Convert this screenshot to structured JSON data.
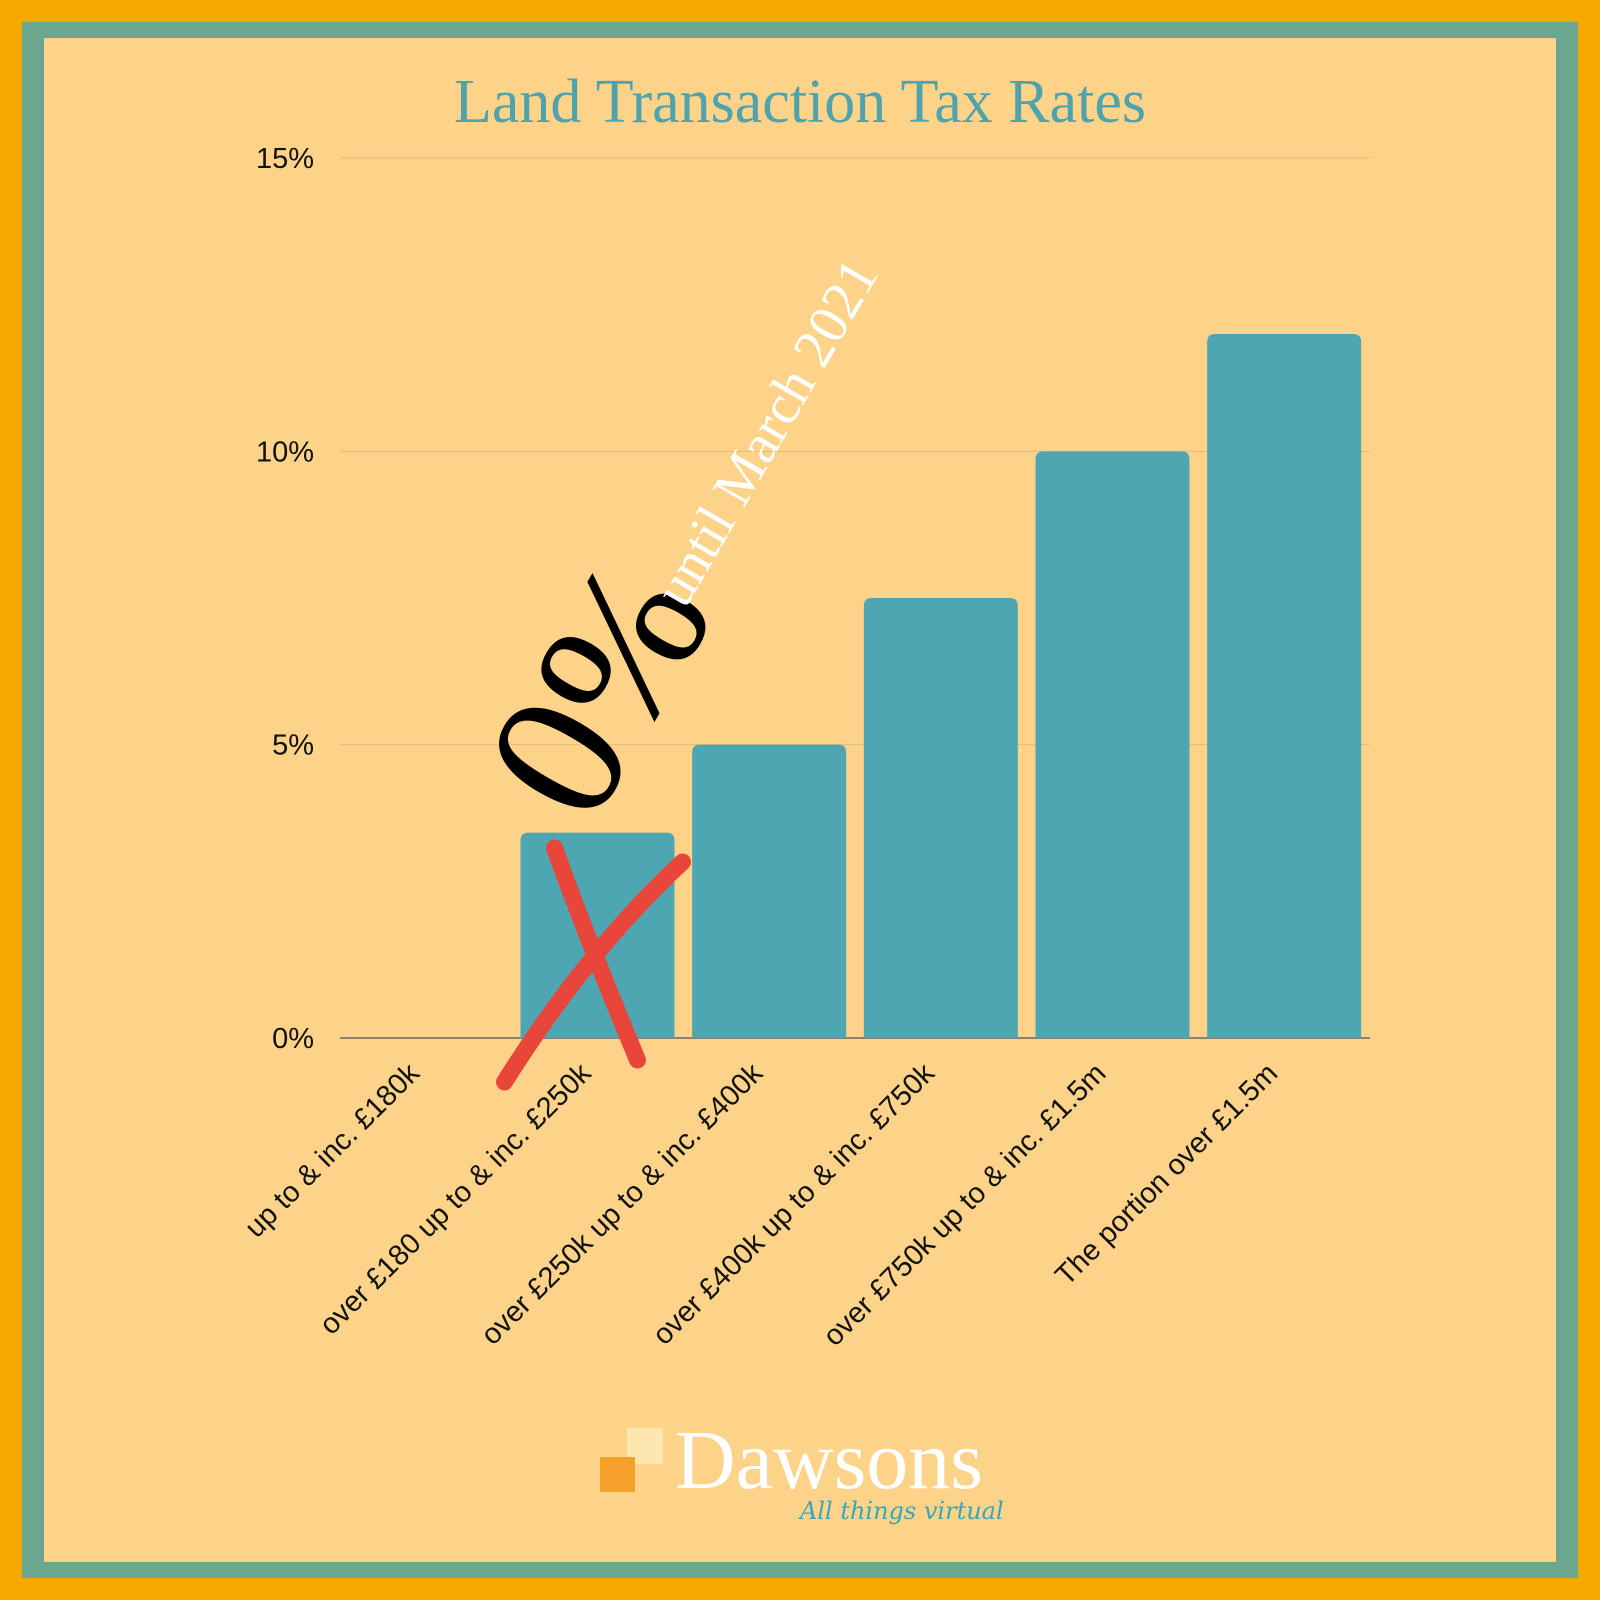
{
  "chart_data": {
    "type": "bar",
    "title": "Land Transaction Tax Rates",
    "categories": [
      "up to & inc. £180k",
      "over £180 up to & inc. £250k",
      "over £250k up to & inc. £400k",
      "over £400k up to & inc. £750k",
      "over £750k up to & inc. £1.5m",
      "The portion over £1.5m"
    ],
    "values": [
      0,
      3.5,
      5,
      7.5,
      10,
      12
    ],
    "ylim": [
      0,
      15
    ],
    "yticks": [
      0,
      5,
      10,
      15
    ],
    "ytick_labels": [
      "0%",
      "5%",
      "10%",
      "15%"
    ],
    "xlabel": "",
    "ylabel": "",
    "grid": true,
    "bar_color": "#4fa6b3"
  },
  "annotation": {
    "big_text": "0%",
    "sub_text": "until March 2021",
    "crossed_category_index": 1,
    "cross_color": "#e8463a"
  },
  "branding": {
    "logo_name": "Dawsons",
    "tagline": "All things virtual",
    "logo_color": "#ffffff",
    "tagline_color": "#3aa6b9",
    "square_colors": [
      "#f5a02a",
      "#fde6b0"
    ]
  },
  "colors": {
    "background": "#fdd38a",
    "border_outer": "#f5a800",
    "border_inner": "#6ba68f",
    "title": "#4fa3ad"
  }
}
